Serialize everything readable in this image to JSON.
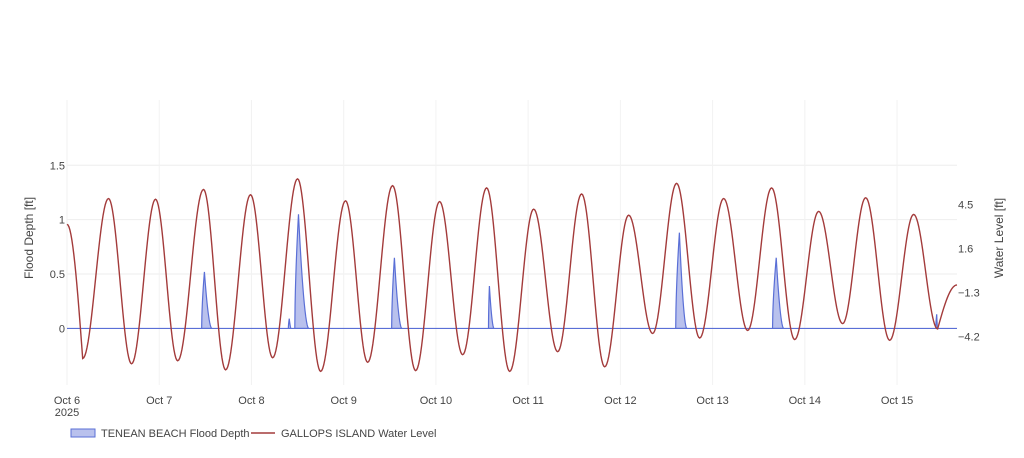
{
  "chart_data": {
    "type": "line",
    "title": "",
    "x_ticks": [
      {
        "day": 0,
        "label": "Oct 6",
        "sublabel": "2025"
      },
      {
        "day": 1,
        "label": "Oct 7"
      },
      {
        "day": 2,
        "label": "Oct 8"
      },
      {
        "day": 3,
        "label": "Oct 9"
      },
      {
        "day": 4,
        "label": "Oct 10"
      },
      {
        "day": 5,
        "label": "Oct 11"
      },
      {
        "day": 6,
        "label": "Oct 12"
      },
      {
        "day": 7,
        "label": "Oct 13"
      },
      {
        "day": 8,
        "label": "Oct 14"
      },
      {
        "day": 9,
        "label": "Oct 15"
      }
    ],
    "xlim_days": [
      0,
      9.65
    ],
    "y_left": {
      "label": "Flood Depth [ft]",
      "range": [
        -0.52,
        2.1
      ],
      "ticks": [
        0,
        0.5,
        1,
        1.5
      ],
      "tick_labels": [
        "0",
        "0.5",
        "1",
        "1.5"
      ]
    },
    "y_right": {
      "label": "Water Level [ft]",
      "range": [
        -7.4,
        11.4
      ],
      "ticks": [
        -4.2,
        -1.3,
        1.6,
        4.5
      ],
      "tick_labels": [
        "−4.2",
        "−1.3",
        "1.6",
        "4.5"
      ]
    },
    "series": [
      {
        "name": "GALLOPS ISLAND Water Level",
        "axis": "right",
        "color": "#a33b3b",
        "style": "line",
        "start_value": 3.2,
        "end_value": -0.8,
        "extrema": [
          {
            "t": 0.17,
            "v": -5.65
          },
          {
            "t": 0.45,
            "v": 4.9
          },
          {
            "t": 0.7,
            "v": -6.0
          },
          {
            "t": 0.96,
            "v": 4.85
          },
          {
            "t": 1.2,
            "v": -5.8
          },
          {
            "t": 1.48,
            "v": 5.5
          },
          {
            "t": 1.72,
            "v": -6.4
          },
          {
            "t": 1.99,
            "v": 5.15
          },
          {
            "t": 2.23,
            "v": -5.6
          },
          {
            "t": 2.5,
            "v": 6.2
          },
          {
            "t": 2.75,
            "v": -6.5
          },
          {
            "t": 3.02,
            "v": 4.75
          },
          {
            "t": 3.26,
            "v": -5.9
          },
          {
            "t": 3.53,
            "v": 5.75
          },
          {
            "t": 3.78,
            "v": -6.45
          },
          {
            "t": 4.04,
            "v": 4.7
          },
          {
            "t": 4.29,
            "v": -5.4
          },
          {
            "t": 4.55,
            "v": 5.6
          },
          {
            "t": 4.8,
            "v": -6.5
          },
          {
            "t": 5.06,
            "v": 4.2
          },
          {
            "t": 5.32,
            "v": -5.2
          },
          {
            "t": 5.58,
            "v": 5.2
          },
          {
            "t": 5.83,
            "v": -6.2
          },
          {
            "t": 6.09,
            "v": 3.8
          },
          {
            "t": 6.35,
            "v": -4.0
          },
          {
            "t": 6.61,
            "v": 5.9
          },
          {
            "t": 6.86,
            "v": -4.3
          },
          {
            "t": 7.12,
            "v": 4.9
          },
          {
            "t": 7.38,
            "v": -3.8
          },
          {
            "t": 7.64,
            "v": 5.6
          },
          {
            "t": 7.89,
            "v": -4.4
          },
          {
            "t": 8.15,
            "v": 4.05
          },
          {
            "t": 8.41,
            "v": -3.35
          },
          {
            "t": 8.66,
            "v": 4.95
          },
          {
            "t": 8.92,
            "v": -4.45
          },
          {
            "t": 9.18,
            "v": 3.85
          },
          {
            "t": 9.44,
            "v": -3.7
          }
        ]
      },
      {
        "name": "TENEAN BEACH Flood Depth",
        "axis": "left",
        "color": "#5a6fd6",
        "fill": "rgba(100,118,214,0.45)",
        "style": "area",
        "peaks": [
          {
            "start": 1.46,
            "peak": 1.49,
            "end": 1.57,
            "value": 0.52
          },
          {
            "start": 2.4,
            "peak": 2.41,
            "end": 2.43,
            "value": 0.09
          },
          {
            "start": 2.47,
            "peak": 2.51,
            "end": 2.62,
            "value": 1.05
          },
          {
            "start": 3.52,
            "peak": 3.55,
            "end": 3.63,
            "value": 0.65
          },
          {
            "start": 4.57,
            "peak": 4.58,
            "end": 4.63,
            "value": 0.39
          },
          {
            "start": 6.6,
            "peak": 6.64,
            "end": 6.72,
            "value": 0.88
          },
          {
            "start": 7.65,
            "peak": 7.69,
            "end": 7.77,
            "value": 0.65
          },
          {
            "start": 9.42,
            "peak": 9.43,
            "end": 9.44,
            "value": 0.13
          }
        ]
      }
    ],
    "legend": {
      "position": "bottom-left",
      "items": [
        "TENEAN BEACH Flood Depth",
        "GALLOPS ISLAND Water Level"
      ]
    }
  }
}
